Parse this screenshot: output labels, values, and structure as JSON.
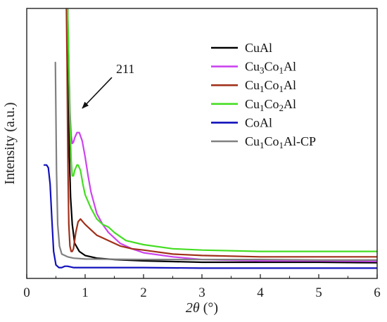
{
  "chart_data": {
    "type": "line",
    "xlabel_italic": "2θ",
    "xlabel_unit": " (°)",
    "ylabel": "Intensity (a.u.)",
    "xlim": [
      0,
      6
    ],
    "ylim": [
      0,
      100
    ],
    "x_ticks": [
      0,
      1,
      2,
      3,
      4,
      5,
      6
    ],
    "x_tick_labels": [
      "0",
      "1",
      "2",
      "3",
      "4",
      "5",
      "6"
    ],
    "legend_position": "top-right",
    "series": [
      {
        "name": "CuAl",
        "legend_parts": [
          [
            "CuAl",
            false
          ]
        ],
        "color": "#000000",
        "points": [
          [
            0.7,
            100
          ],
          [
            0.71,
            80
          ],
          [
            0.72,
            60
          ],
          [
            0.73,
            45
          ],
          [
            0.75,
            30
          ],
          [
            0.78,
            20
          ],
          [
            0.82,
            13
          ],
          [
            0.9,
            10
          ],
          [
            1.0,
            8.5
          ],
          [
            1.2,
            7.5
          ],
          [
            1.5,
            7
          ],
          [
            2.0,
            6.5
          ],
          [
            3.0,
            6
          ],
          [
            4.0,
            6
          ],
          [
            5.0,
            6
          ],
          [
            6.0,
            5.8
          ]
        ]
      },
      {
        "name": "Cu3Co1Al",
        "legend_parts": [
          [
            "Cu",
            false
          ],
          [
            "3",
            true
          ],
          [
            "Co",
            false
          ],
          [
            "1",
            true
          ],
          [
            "Al",
            false
          ]
        ],
        "color": "#cc44ee",
        "points": [
          [
            0.7,
            100
          ],
          [
            0.72,
            80
          ],
          [
            0.74,
            62
          ],
          [
            0.76,
            53
          ],
          [
            0.78,
            50
          ],
          [
            0.8,
            50.5
          ],
          [
            0.82,
            52
          ],
          [
            0.86,
            54
          ],
          [
            0.9,
            54
          ],
          [
            0.95,
            51
          ],
          [
            1.0,
            45
          ],
          [
            1.05,
            38
          ],
          [
            1.1,
            32
          ],
          [
            1.2,
            24
          ],
          [
            1.3,
            20
          ],
          [
            1.4,
            17
          ],
          [
            1.6,
            13
          ],
          [
            1.8,
            11
          ],
          [
            2.0,
            9.5
          ],
          [
            2.5,
            8
          ],
          [
            3.0,
            7
          ],
          [
            4.0,
            6.5
          ],
          [
            5.0,
            6.5
          ],
          [
            6.0,
            6.3
          ]
        ]
      },
      {
        "name": "Cu1Co1Al",
        "legend_parts": [
          [
            "Cu",
            false
          ],
          [
            "1",
            true
          ],
          [
            "Co",
            false
          ],
          [
            "1",
            true
          ],
          [
            "Al",
            false
          ]
        ],
        "color": "#a0301a",
        "points": [
          [
            0.68,
            100
          ],
          [
            0.69,
            80
          ],
          [
            0.7,
            55
          ],
          [
            0.71,
            35
          ],
          [
            0.72,
            20
          ],
          [
            0.74,
            12
          ],
          [
            0.76,
            10
          ],
          [
            0.78,
            10
          ],
          [
            0.8,
            11
          ],
          [
            0.84,
            17
          ],
          [
            0.88,
            21
          ],
          [
            0.92,
            22
          ],
          [
            0.96,
            21
          ],
          [
            1.0,
            20
          ],
          [
            1.1,
            18
          ],
          [
            1.2,
            16
          ],
          [
            1.3,
            15
          ],
          [
            1.4,
            14
          ],
          [
            1.6,
            12
          ],
          [
            1.8,
            11
          ],
          [
            2.0,
            10.5
          ],
          [
            2.5,
            9
          ],
          [
            3.0,
            8.5
          ],
          [
            4.0,
            8
          ],
          [
            5.0,
            8
          ],
          [
            6.0,
            8
          ]
        ]
      },
      {
        "name": "Cu1Co2Al",
        "legend_parts": [
          [
            "Cu",
            false
          ],
          [
            "1",
            true
          ],
          [
            "Co",
            false
          ],
          [
            "2",
            true
          ],
          [
            "Al",
            false
          ]
        ],
        "color": "#44dd22",
        "points": [
          [
            0.7,
            100
          ],
          [
            0.72,
            80
          ],
          [
            0.74,
            58
          ],
          [
            0.76,
            44
          ],
          [
            0.78,
            38
          ],
          [
            0.8,
            38
          ],
          [
            0.82,
            40
          ],
          [
            0.86,
            42
          ],
          [
            0.88,
            42
          ],
          [
            0.92,
            40
          ],
          [
            0.96,
            35
          ],
          [
            1.0,
            31
          ],
          [
            1.1,
            26
          ],
          [
            1.2,
            22
          ],
          [
            1.3,
            20
          ],
          [
            1.4,
            19
          ],
          [
            1.5,
            17
          ],
          [
            1.7,
            14
          ],
          [
            2.0,
            12.5
          ],
          [
            2.5,
            11
          ],
          [
            3.0,
            10.5
          ],
          [
            4.0,
            10
          ],
          [
            5.0,
            10
          ],
          [
            6.0,
            10
          ]
        ]
      },
      {
        "name": "CoAl",
        "legend_parts": [
          [
            "CoAl",
            false
          ]
        ],
        "color": "#1111bb",
        "points": [
          [
            0.3,
            42
          ],
          [
            0.34,
            42
          ],
          [
            0.37,
            41
          ],
          [
            0.4,
            35
          ],
          [
            0.43,
            22
          ],
          [
            0.46,
            10
          ],
          [
            0.5,
            5
          ],
          [
            0.55,
            4
          ],
          [
            0.6,
            4
          ],
          [
            0.65,
            4.5
          ],
          [
            0.7,
            4.5
          ],
          [
            0.8,
            4
          ],
          [
            1.0,
            4
          ],
          [
            2.0,
            4
          ],
          [
            3.0,
            3.8
          ],
          [
            4.0,
            3.8
          ],
          [
            5.0,
            3.8
          ],
          [
            6.0,
            3.8
          ]
        ]
      },
      {
        "name": "Cu1Co1Al-CP",
        "legend_parts": [
          [
            "Cu",
            false
          ],
          [
            "1",
            true
          ],
          [
            "Co",
            false
          ],
          [
            "1",
            true
          ],
          [
            "Al-CP",
            false
          ]
        ],
        "color": "#808080",
        "points": [
          [
            0.49,
            80
          ],
          [
            0.5,
            60
          ],
          [
            0.51,
            40
          ],
          [
            0.53,
            20
          ],
          [
            0.56,
            12
          ],
          [
            0.6,
            9
          ],
          [
            0.7,
            8
          ],
          [
            0.8,
            7.5
          ],
          [
            1.0,
            7.2
          ],
          [
            2.0,
            7
          ],
          [
            3.0,
            7
          ],
          [
            4.0,
            7
          ],
          [
            5.0,
            6.8
          ],
          [
            6.0,
            6.8
          ]
        ]
      }
    ],
    "annotations": [
      {
        "text": "211",
        "target": [
          0.88,
          62
        ],
        "text_anchor": [
          1.65,
          76
        ]
      }
    ]
  }
}
